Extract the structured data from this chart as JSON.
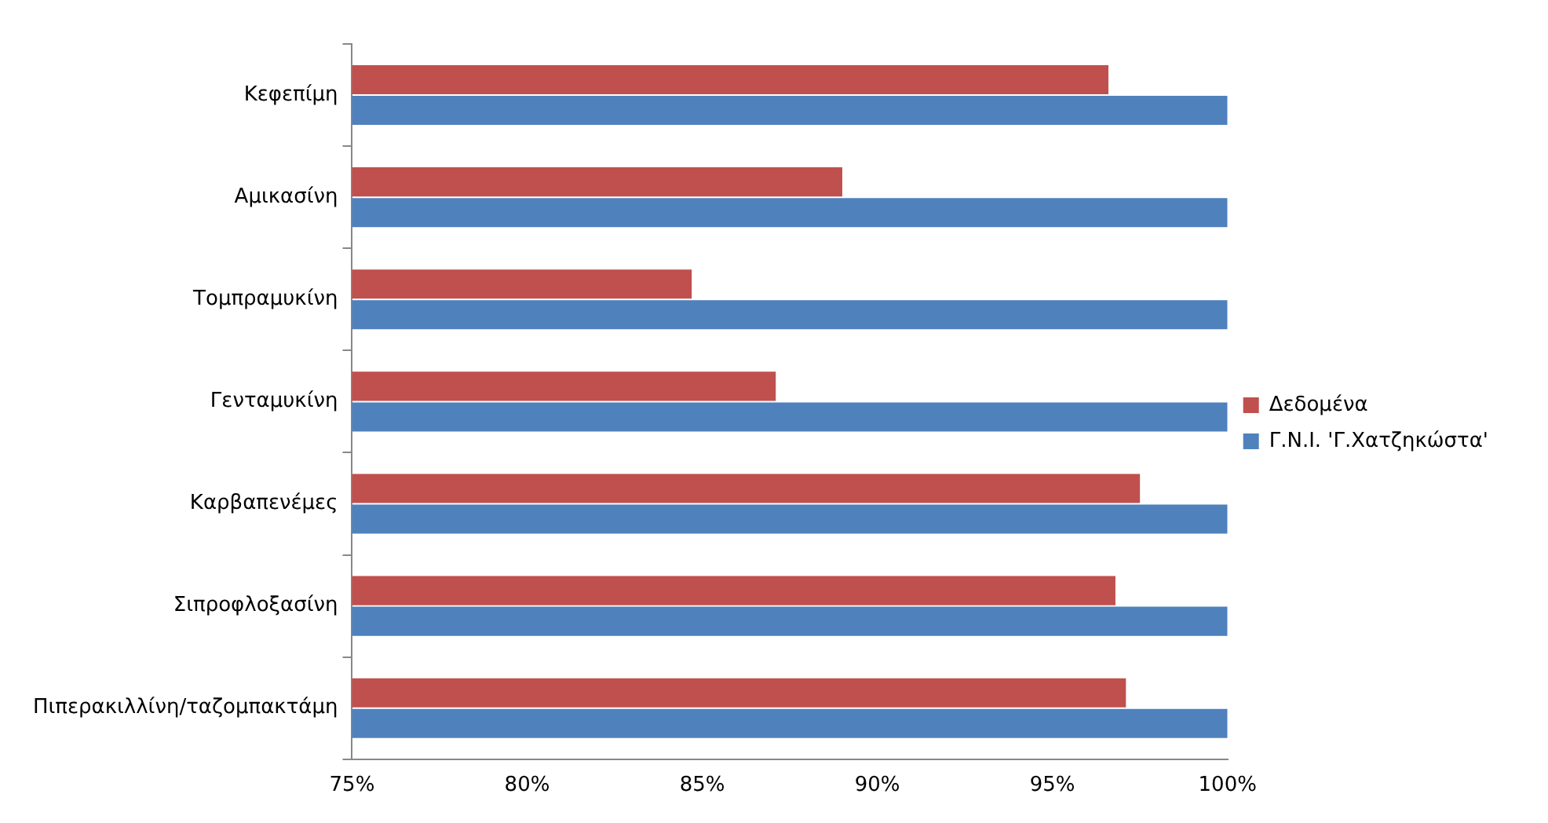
{
  "chart_data": {
    "type": "bar",
    "orientation": "horizontal",
    "categories": [
      "Κεφεπίμη",
      "Αμικασίνη",
      "Τομπραμυκίνη",
      "Γενταμυκίνη",
      "Καρβαπενέμες",
      "Σιπροφλοξασίνη",
      "Πιπερακιλλίνη/ταζομπακτάμη"
    ],
    "series": [
      {
        "name": "Δεδομένα",
        "color": "#c0504d",
        "values": [
          96.6,
          89.0,
          84.7,
          87.1,
          97.5,
          96.8,
          97.1
        ]
      },
      {
        "name": "Γ.Ν.Ι. 'Γ.Χατζηκώστα'",
        "color": "#4f81bd",
        "values": [
          100,
          100,
          100,
          100,
          100,
          100,
          100
        ]
      }
    ],
    "xlim": [
      75,
      100
    ],
    "xticks": [
      {
        "value": 75,
        "label": "75%"
      },
      {
        "value": 80,
        "label": "80%"
      },
      {
        "value": 85,
        "label": "85%"
      },
      {
        "value": 90,
        "label": "90%"
      },
      {
        "value": 95,
        "label": "95%"
      },
      {
        "value": 100,
        "label": "100%"
      }
    ],
    "grid": false,
    "legend": "right"
  }
}
